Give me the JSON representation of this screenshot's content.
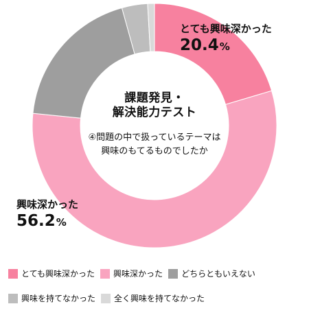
{
  "chart_data": {
    "type": "pie",
    "donut": true,
    "title": "課題発見・解決能力テスト",
    "title_lines": [
      "課題発見・",
      "解決能力テスト"
    ],
    "subtitle_lines": [
      "④問題の中で扱っているテーマは",
      "興味のもてるものでしたか"
    ],
    "unit": "%",
    "categories": [
      "とても興味深かった",
      "興味深かった",
      "どちらともいえない",
      "興味を持てなかった",
      "全く興味を持てなかった"
    ],
    "values": [
      20.4,
      56.2,
      19.1,
      3.4,
      0.9
    ],
    "colors": [
      "#f7819f",
      "#f9a4bf",
      "#9e9e9e",
      "#bdbdbd",
      "#d9d9d9"
    ],
    "start_angle_deg": 0,
    "direction": "clockwise",
    "legend_position": "bottom"
  },
  "labels": {
    "very_interesting": {
      "category": "とても興味深かった",
      "value": "20.4",
      "unit": "%"
    },
    "interesting": {
      "category": "興味深かった",
      "value": "56.2",
      "unit": "%"
    }
  },
  "legend": {
    "rows": [
      [
        {
          "label": "とても興味深かった",
          "color": "#f7819f"
        },
        {
          "label": "興味深かった",
          "color": "#f9a4bf"
        },
        {
          "label": "どちらともいえない",
          "color": "#9e9e9e"
        }
      ],
      [
        {
          "label": "興味を持てなかった",
          "color": "#bdbdbd"
        },
        {
          "label": "全く興味を持てなかった",
          "color": "#d9d9d9"
        }
      ]
    ]
  }
}
